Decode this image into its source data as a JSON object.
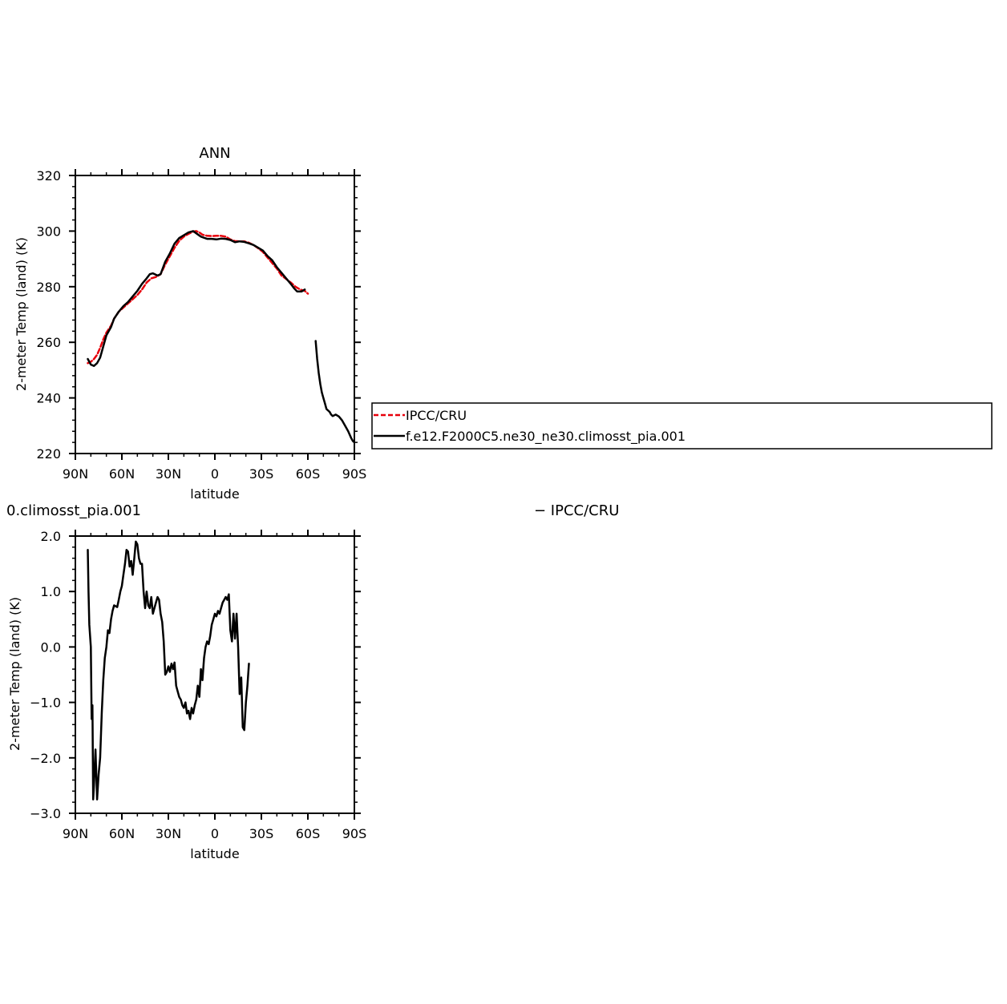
{
  "chart_data": [
    {
      "type": "line",
      "title": "ANN",
      "xlabel": "latitude",
      "ylabel": "2-meter Temp (land) (K)",
      "xlim": [
        90,
        -90
      ],
      "ylim": [
        220,
        320
      ],
      "xticks": [
        90,
        60,
        30,
        0,
        -30,
        -60,
        -90
      ],
      "xtick_labels": [
        "90N",
        "60N",
        "30N",
        "0",
        "30S",
        "60S",
        "90S"
      ],
      "yticks": [
        220,
        240,
        260,
        280,
        300,
        320
      ],
      "ytick_labels": [
        "220",
        "240",
        "260",
        "280",
        "300",
        "320"
      ],
      "legend": {
        "placement": "right",
        "entries": [
          {
            "label": "IPCC/CRU",
            "color": "#e8000b",
            "dash": true
          },
          {
            "label": "f.e12.F2000C5.ne30_ne30.climosst_pia.001",
            "color": "#000000",
            "dash": false
          }
        ]
      },
      "series": [
        {
          "name": "IPCC/CRU",
          "color": "#e8000b",
          "dashed": true,
          "segments": [
            [
              [
                82,
                252.5
              ],
              [
                80,
                253
              ],
              [
                78,
                254
              ],
              [
                76,
                255.5
              ],
              [
                74,
                258
              ],
              [
                72,
                261
              ],
              [
                70,
                263.5
              ],
              [
                67,
                266
              ],
              [
                65,
                268.5
              ],
              [
                62,
                271
              ],
              [
                59,
                272.5
              ],
              [
                56,
                274
              ],
              [
                53,
                275.5
              ],
              [
                50,
                277
              ],
              [
                47,
                279
              ],
              [
                44,
                281.5
              ],
              [
                41,
                283
              ],
              [
                38,
                283.5
              ],
              [
                35,
                284.5
              ],
              [
                32,
                288
              ],
              [
                29,
                291
              ],
              [
                26,
                294
              ],
              [
                23,
                296.5
              ],
              [
                20,
                298
              ],
              [
                17,
                299
              ],
              [
                14,
                299.8
              ],
              [
                12,
                300
              ],
              [
                10,
                299.5
              ],
              [
                8,
                298.7
              ],
              [
                5,
                298.3
              ],
              [
                2,
                298.2
              ],
              [
                -1,
                298.3
              ],
              [
                -4,
                298.3
              ],
              [
                -7,
                298
              ],
              [
                -10,
                297
              ],
              [
                -13,
                296.4
              ],
              [
                -16,
                296.3
              ],
              [
                -19,
                296.3
              ],
              [
                -22,
                295.8
              ],
              [
                -25,
                295
              ],
              [
                -28,
                293.8
              ],
              [
                -31,
                292.5
              ],
              [
                -34,
                290.5
              ],
              [
                -37,
                288.5
              ],
              [
                -40,
                286.5
              ],
              [
                -43,
                284
              ],
              [
                -46,
                282.8
              ],
              [
                -49,
                281.5
              ],
              [
                -52,
                280
              ],
              [
                -55,
                279
              ],
              [
                -58,
                278.5
              ],
              [
                -60,
                277.5
              ]
            ]
          ]
        },
        {
          "name": "f.e12.F2000C5.ne30_ne30.climosst_pia.001",
          "color": "#000000",
          "dashed": false,
          "segments": [
            [
              [
                82,
                254
              ],
              [
                80,
                252
              ],
              [
                78,
                251.5
              ],
              [
                76,
                252.5
              ],
              [
                74,
                254.5
              ],
              [
                72,
                258.5
              ],
              [
                70,
                262.5
              ],
              [
                67,
                265.5
              ],
              [
                65,
                268.5
              ],
              [
                62,
                271
              ],
              [
                59,
                273
              ],
              [
                56,
                274.5
              ],
              [
                53,
                276.5
              ],
              [
                50,
                278.5
              ],
              [
                47,
                281
              ],
              [
                44,
                283
              ],
              [
                42,
                284.5
              ],
              [
                40,
                284.8
              ],
              [
                37,
                284
              ],
              [
                35,
                284.5
              ],
              [
                32,
                289
              ],
              [
                29,
                292
              ],
              [
                26,
                295.5
              ],
              [
                23,
                297.5
              ],
              [
                20,
                298.5
              ],
              [
                17,
                299.5
              ],
              [
                14,
                300
              ],
              [
                12,
                299.2
              ],
              [
                9,
                298
              ],
              [
                5,
                297.2
              ],
              [
                2,
                297.2
              ],
              [
                -1,
                297
              ],
              [
                -4,
                297.3
              ],
              [
                -7,
                297.2
              ],
              [
                -10,
                296.8
              ],
              [
                -13,
                296
              ],
              [
                -16,
                296.3
              ],
              [
                -19,
                296.1
              ],
              [
                -22,
                295.6
              ],
              [
                -25,
                295
              ],
              [
                -28,
                294
              ],
              [
                -31,
                293
              ],
              [
                -34,
                291
              ],
              [
                -37,
                289.5
              ],
              [
                -40,
                287
              ],
              [
                -43,
                285
              ],
              [
                -46,
                283
              ],
              [
                -49,
                281
              ],
              [
                -51,
                279.5
              ],
              [
                -53,
                278.3
              ],
              [
                -56,
                278.3
              ],
              [
                -58,
                279
              ]
            ],
            [
              [
                -65,
                260.5
              ],
              [
                -66,
                254
              ],
              [
                -67,
                249
              ],
              [
                -68,
                245
              ],
              [
                -69,
                242
              ],
              [
                -70,
                240
              ],
              [
                -71,
                238
              ],
              [
                -72,
                236
              ],
              [
                -73,
                235.5
              ],
              [
                -74,
                235
              ],
              [
                -75,
                234
              ],
              [
                -76,
                233.5
              ],
              [
                -78,
                234
              ],
              [
                -80,
                233.3
              ],
              [
                -82,
                232
              ],
              [
                -84,
                230
              ],
              [
                -86,
                228
              ],
              [
                -88,
                225.5
              ],
              [
                -89,
                224.5
              ],
              [
                -90,
                224
              ]
            ]
          ]
        }
      ]
    },
    {
      "type": "line",
      "title": "0.climosst_pia.001",
      "right_title": "− IPCC/CRU",
      "xlabel": "latitude",
      "ylabel": "2-meter Temp (land) (K)",
      "xlim": [
        90,
        -90
      ],
      "ylim": [
        -3.0,
        2.0
      ],
      "xticks": [
        90,
        60,
        30,
        0,
        -30,
        -60,
        -90
      ],
      "xtick_labels": [
        "90N",
        "60N",
        "30N",
        "0",
        "30S",
        "60S",
        "90S"
      ],
      "yticks": [
        -3,
        -2,
        -1,
        0,
        1,
        2
      ],
      "ytick_labels": [
        "−3.0",
        "−2.0",
        "−1.0",
        "0.0",
        "1.0",
        "2.0"
      ],
      "series": [
        {
          "color": "#000000",
          "dashed": false,
          "segments": [
            [
              [
                82,
                1.75
              ],
              [
                81.5,
                1.0
              ],
              [
                81,
                0.4
              ],
              [
                80,
                0.0
              ],
              [
                79.5,
                -1.3
              ],
              [
                79,
                -1.05
              ],
              [
                78.5,
                -2.75
              ],
              [
                78,
                -2.5
              ],
              [
                77,
                -1.85
              ],
              [
                76,
                -2.75
              ],
              [
                75,
                -2.3
              ],
              [
                74,
                -2.0
              ],
              [
                73,
                -1.2
              ],
              [
                72,
                -0.6
              ],
              [
                71,
                -0.2
              ],
              [
                70,
                0.0
              ],
              [
                69,
                0.3
              ],
              [
                68,
                0.25
              ],
              [
                67,
                0.5
              ],
              [
                66,
                0.65
              ],
              [
                65,
                0.75
              ],
              [
                63,
                0.72
              ],
              [
                62,
                0.85
              ],
              [
                61,
                1.0
              ],
              [
                60,
                1.1
              ],
              [
                59,
                1.3
              ],
              [
                58,
                1.5
              ],
              [
                57,
                1.75
              ],
              [
                56,
                1.72
              ],
              [
                55,
                1.45
              ],
              [
                54,
                1.55
              ],
              [
                53,
                1.3
              ],
              [
                52,
                1.6
              ],
              [
                51,
                1.9
              ],
              [
                50,
                1.85
              ],
              [
                49,
                1.6
              ],
              [
                48,
                1.5
              ],
              [
                47,
                1.5
              ],
              [
                46,
                1.0
              ],
              [
                45,
                0.7
              ],
              [
                44,
                1.0
              ],
              [
                43,
                0.75
              ],
              [
                42,
                0.7
              ],
              [
                41,
                0.9
              ],
              [
                40,
                0.6
              ],
              [
                39,
                0.7
              ],
              [
                38,
                0.8
              ],
              [
                37,
                0.9
              ],
              [
                36,
                0.85
              ],
              [
                35,
                0.6
              ],
              [
                34,
                0.45
              ],
              [
                33,
                0.1
              ],
              [
                32,
                -0.5
              ],
              [
                31,
                -0.45
              ],
              [
                30,
                -0.35
              ],
              [
                29,
                -0.45
              ],
              [
                28,
                -0.3
              ],
              [
                27,
                -0.4
              ],
              [
                26,
                -0.28
              ],
              [
                25,
                -0.7
              ],
              [
                24,
                -0.8
              ],
              [
                23,
                -0.9
              ],
              [
                22,
                -0.95
              ],
              [
                21,
                -1.05
              ],
              [
                20,
                -1.1
              ],
              [
                19,
                -1.0
              ],
              [
                18,
                -1.2
              ],
              [
                17,
                -1.15
              ],
              [
                16,
                -1.3
              ],
              [
                15,
                -1.1
              ],
              [
                14,
                -1.2
              ],
              [
                13,
                -1.05
              ],
              [
                12,
                -0.95
              ],
              [
                11,
                -0.7
              ],
              [
                10,
                -0.9
              ],
              [
                9,
                -0.4
              ],
              [
                8,
                -0.6
              ],
              [
                7,
                -0.2
              ],
              [
                6,
                -0.0
              ],
              [
                5,
                0.1
              ],
              [
                4,
                0.05
              ],
              [
                3,
                0.2
              ],
              [
                2,
                0.4
              ],
              [
                1,
                0.5
              ],
              [
                0,
                0.6
              ],
              [
                -1,
                0.55
              ],
              [
                -2,
                0.65
              ],
              [
                -3,
                0.6
              ],
              [
                -4,
                0.7
              ],
              [
                -5,
                0.8
              ],
              [
                -6,
                0.85
              ],
              [
                -7,
                0.9
              ],
              [
                -8,
                0.85
              ],
              [
                -9,
                0.95
              ],
              [
                -10,
                0.3
              ],
              [
                -11,
                0.1
              ],
              [
                -12,
                0.6
              ],
              [
                -13,
                0.15
              ],
              [
                -14,
                0.6
              ],
              [
                -15,
                0.0
              ],
              [
                -16,
                -0.85
              ],
              [
                -17,
                -0.55
              ],
              [
                -18,
                -1.45
              ],
              [
                -19,
                -1.5
              ],
              [
                -20,
                -1.0
              ],
              [
                -21,
                -0.7
              ],
              [
                -22,
                -0.3
              ]
            ]
          ]
        }
      ]
    }
  ]
}
